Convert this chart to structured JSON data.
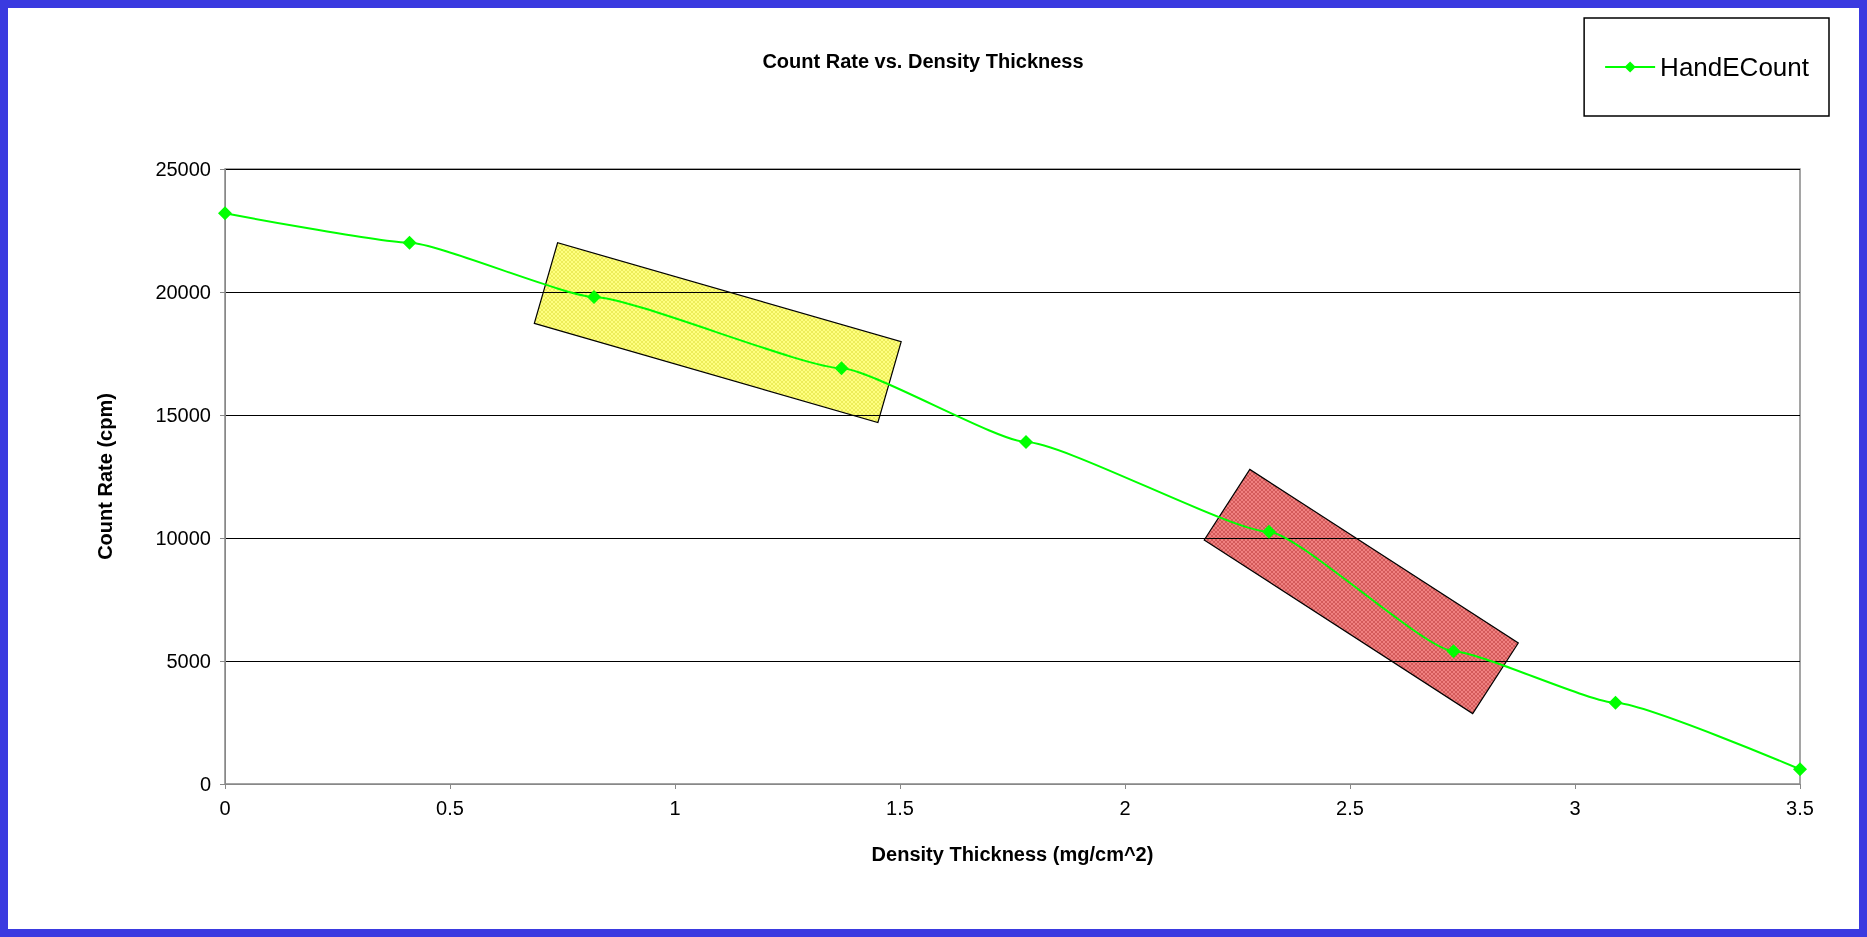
{
  "chart_data": {
    "type": "line",
    "title": "Count Rate vs. Density Thickness",
    "xlabel": "Density Thickness (mg/cm^2)",
    "ylabel": "Count Rate (cpm)",
    "x": [
      0,
      0.41,
      0.82,
      1.37,
      1.78,
      2.32,
      2.73,
      3.09,
      3.5
    ],
    "series": [
      {
        "name": "HandECount",
        "color": "#00ff00",
        "values": [
          23200,
          22000,
          19800,
          16900,
          13900,
          10250,
          5400,
          3300,
          600
        ]
      }
    ],
    "xlim": [
      0,
      3.5
    ],
    "xticks": [
      0,
      0.5,
      1,
      1.5,
      2,
      2.5,
      3,
      3.5
    ],
    "ylim": [
      0,
      25000
    ],
    "yticks": [
      0,
      5000,
      10000,
      15000,
      20000,
      25000
    ],
    "grid": "y",
    "legend": "top right",
    "marker": "diamond",
    "line_style": "solid"
  }
}
